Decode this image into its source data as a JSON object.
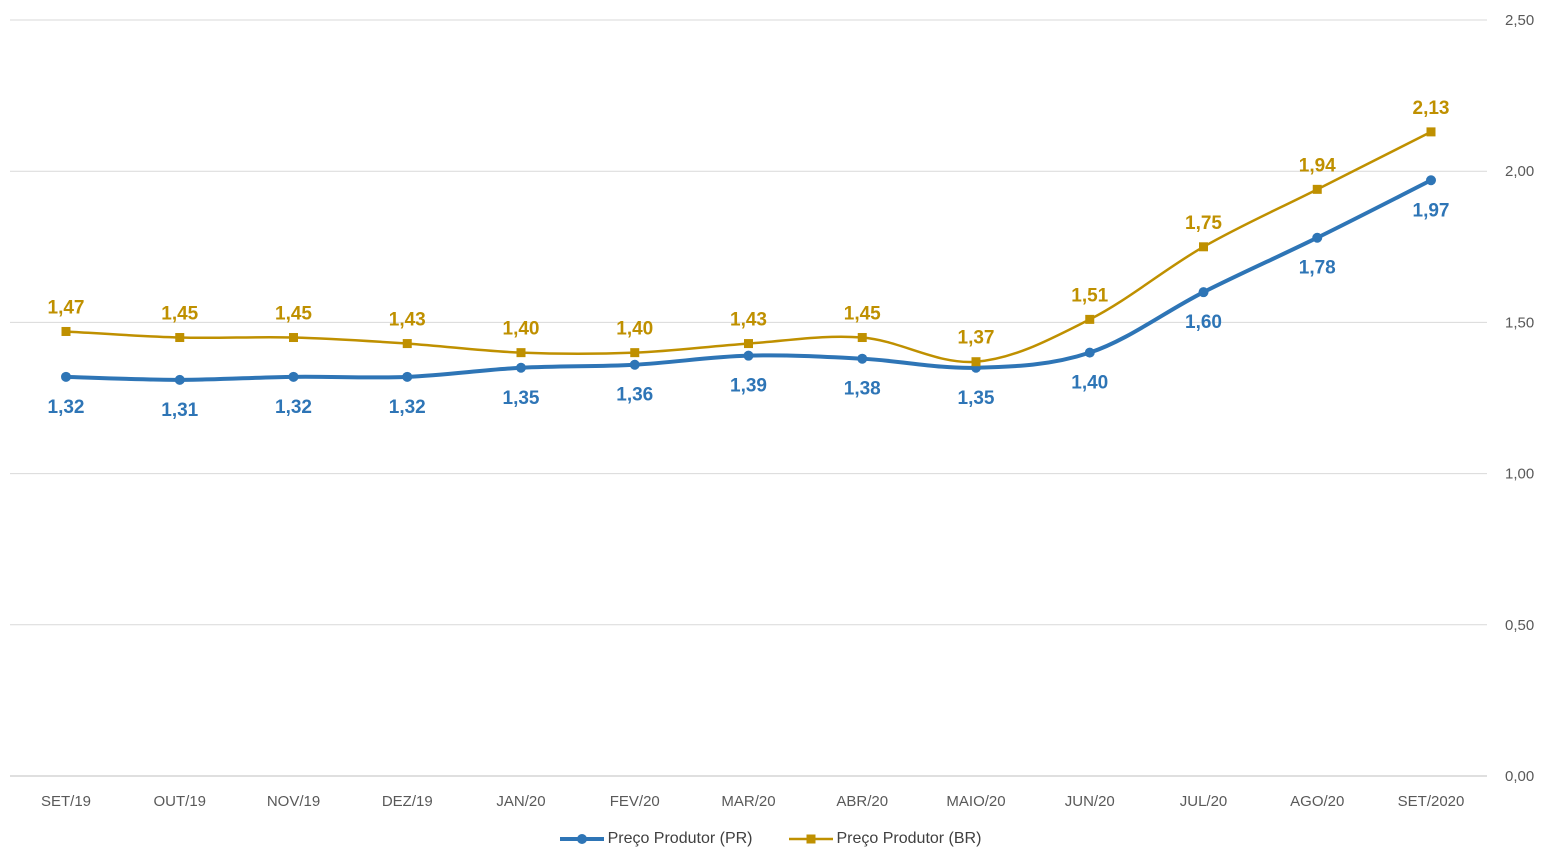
{
  "chart_data": {
    "type": "line",
    "categories": [
      "SET/19",
      "OUT/19",
      "NOV/19",
      "DEZ/19",
      "JAN/20",
      "FEV/20",
      "MAR/20",
      "ABR/20",
      "MAIO/20",
      "JUN/20",
      "JUL/20",
      "AGO/20",
      "SET/2020"
    ],
    "series": [
      {
        "name": "Preço Produtor (PR)",
        "color": "#2E75B6",
        "marker": "circle",
        "values": [
          1.32,
          1.31,
          1.32,
          1.32,
          1.35,
          1.36,
          1.39,
          1.38,
          1.35,
          1.4,
          1.6,
          1.78,
          1.97
        ],
        "labels": [
          "1,32",
          "1,31",
          "1,32",
          "1,32",
          "1,35",
          "1,36",
          "1,39",
          "1,38",
          "1,35",
          "1,40",
          "1,60",
          "1,78",
          "1,97"
        ]
      },
      {
        "name": "Preço Produtor (BR)",
        "color": "#BF9000",
        "marker": "square",
        "values": [
          1.47,
          1.45,
          1.45,
          1.43,
          1.4,
          1.4,
          1.43,
          1.45,
          1.37,
          1.51,
          1.75,
          1.94,
          2.13
        ],
        "labels": [
          "1,47",
          "1,45",
          "1,45",
          "1,43",
          "1,40",
          "1,40",
          "1,43",
          "1,45",
          "1,37",
          "1,51",
          "1,75",
          "1,94",
          "2,13"
        ]
      }
    ],
    "y_ticks": [
      "0,00",
      "0,50",
      "1,00",
      "1,50",
      "2,00",
      "2,50"
    ],
    "ylim": [
      0,
      2.5
    ],
    "y_axis_side": "right",
    "grid": true,
    "legend_position": "bottom"
  }
}
